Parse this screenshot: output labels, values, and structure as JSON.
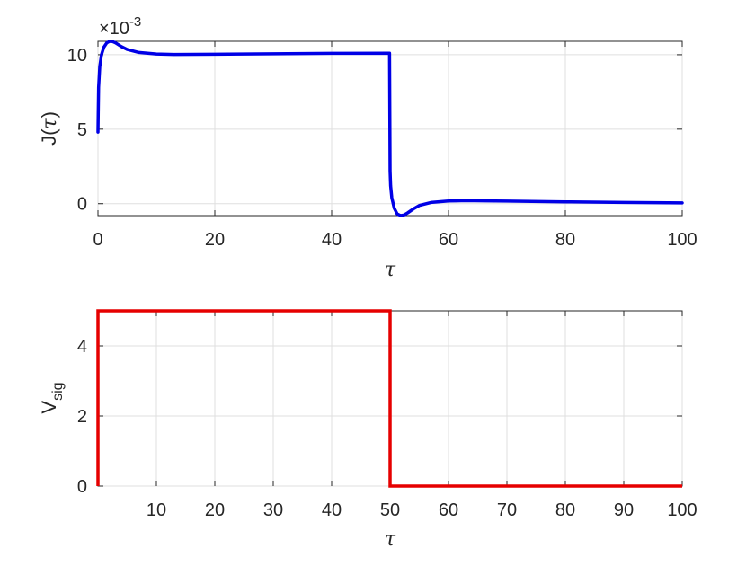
{
  "chart_data": [
    {
      "type": "line",
      "ylabel_main": "J(",
      "ylabel_sym": "τ",
      "ylabel_close": ")",
      "xlabel": "τ",
      "exponent_prefix": "×10",
      "exponent_power": "-3",
      "xlim": [
        0,
        100
      ],
      "ylim": [
        -0.8,
        10.9
      ],
      "grid": true,
      "xticks": [
        0,
        20,
        40,
        60,
        80,
        100
      ],
      "yticks": [
        0,
        5,
        10
      ],
      "ytick_labels": [
        "0",
        "5",
        "10"
      ],
      "color": "#0000e6",
      "series": [
        {
          "x": [
            0,
            0.1,
            0.3,
            0.6,
            1,
            1.5,
            2,
            2.5,
            3,
            4,
            5,
            7,
            10,
            13,
            20,
            30,
            40,
            49.9,
            50,
            50.1,
            50.3,
            50.7,
            51.2,
            51.8,
            52.4,
            53,
            54,
            55,
            57,
            60,
            63,
            66,
            70,
            80,
            90,
            100
          ],
          "y": [
            4.8,
            7.8,
            9.2,
            10.0,
            10.5,
            10.8,
            10.9,
            10.88,
            10.8,
            10.55,
            10.35,
            10.15,
            10.05,
            10.02,
            10.03,
            10.06,
            10.09,
            10.1,
            2.2,
            1.2,
            0.4,
            -0.3,
            -0.68,
            -0.8,
            -0.76,
            -0.62,
            -0.35,
            -0.12,
            0.08,
            0.18,
            0.2,
            0.19,
            0.17,
            0.12,
            0.08,
            0.05
          ]
        }
      ]
    },
    {
      "type": "line",
      "ylabel_main": "V",
      "ylabel_sub": "sig",
      "xlabel": "τ",
      "xlim": [
        0,
        100
      ],
      "ylim": [
        0,
        5
      ],
      "grid": true,
      "xticks": [
        10,
        20,
        30,
        40,
        50,
        60,
        70,
        80,
        90,
        100
      ],
      "yticks": [
        0,
        2,
        4
      ],
      "ytick_labels": [
        "0",
        "2",
        "4"
      ],
      "color": "#e60000",
      "series": [
        {
          "x": [
            0,
            0,
            50,
            50,
            100
          ],
          "y": [
            0,
            5,
            5,
            0,
            0
          ]
        }
      ]
    }
  ]
}
